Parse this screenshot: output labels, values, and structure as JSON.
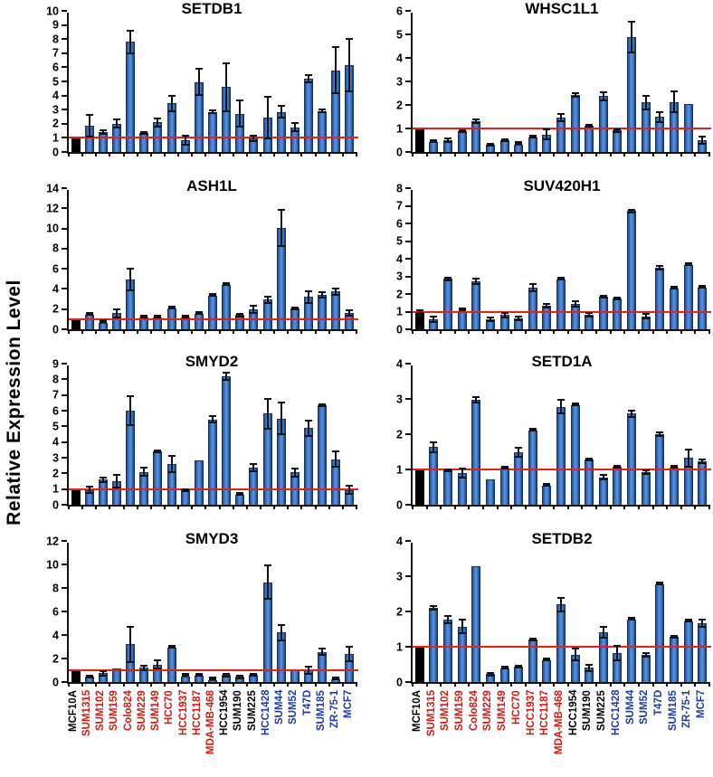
{
  "figure": {
    "ylabel": "Relative Expression Level",
    "categories": [
      "MCF10A",
      "SUM1315",
      "SUM102",
      "SUM159",
      "Colo824",
      "SUM229",
      "SUM149",
      "HCC70",
      "HCC1937",
      "HCC1187",
      "MDA-MB-468",
      "HCC1954",
      "SUM190",
      "SUM225",
      "HCC1428",
      "SUM44",
      "SUM52",
      "T47D",
      "SUM185",
      "ZR-75-1",
      "MCF7"
    ],
    "category_colors": [
      "#000000",
      "#d11a10",
      "#d11a10",
      "#d11a10",
      "#d11a10",
      "#d11a10",
      "#d11a10",
      "#d11a10",
      "#d11a10",
      "#d11a10",
      "#d11a10",
      "#000000",
      "#000000",
      "#000000",
      "#1c3ba8",
      "#1c3ba8",
      "#1c3ba8",
      "#1c3ba8",
      "#1c3ba8",
      "#1c3ba8",
      "#1c3ba8"
    ],
    "bar_color": "#3a70c0",
    "control_bar_color": "#000000",
    "error_bar_color": "#111111",
    "reference_line_color": "#ee1c14",
    "grid": "off",
    "legend": "none"
  },
  "chart_data": [
    {
      "type": "bar",
      "title": "SETDB1",
      "ylim": [
        0,
        10
      ],
      "ytick_step": 1,
      "ref_line": 1,
      "control_index": 0,
      "values": [
        1.0,
        1.85,
        1.4,
        2.0,
        7.8,
        1.35,
        2.1,
        3.45,
        0.85,
        4.95,
        2.85,
        4.6,
        2.7,
        0.95,
        2.45,
        2.85,
        1.75,
        5.2,
        2.9,
        5.8,
        6.15
      ],
      "errors": [
        0,
        0.85,
        0.2,
        0.35,
        0.85,
        0.1,
        0.35,
        0.6,
        0.4,
        1.0,
        0.15,
        1.75,
        1.0,
        0.25,
        1.55,
        0.5,
        0.35,
        0.3,
        0.15,
        1.7,
        1.9
      ]
    },
    {
      "type": "bar",
      "title": "WHSC1L1",
      "ylim": [
        0,
        6
      ],
      "ytick_step": 1,
      "ref_line": 1,
      "control_index": 0,
      "values": [
        1.0,
        0.42,
        0.5,
        0.9,
        1.3,
        0.3,
        0.5,
        0.32,
        0.63,
        0.75,
        1.47,
        2.42,
        1.1,
        2.37,
        0.92,
        4.88,
        2.1,
        1.5,
        2.12,
        2.05,
        0.5
      ],
      "errors": [
        0,
        0.05,
        0.1,
        0.08,
        0.12,
        0.05,
        0.07,
        0.03,
        0.06,
        0.25,
        0.2,
        0.13,
        0.05,
        0.2,
        0.1,
        0.7,
        0.32,
        0.25,
        0.48,
        0,
        0.2
      ]
    },
    {
      "type": "bar",
      "title": "ASH1L",
      "ylim": [
        0,
        14
      ],
      "ytick_step": 2,
      "ref_line": 1,
      "control_index": 0,
      "values": [
        1.0,
        1.45,
        0.65,
        1.6,
        4.95,
        1.2,
        1.2,
        2.05,
        1.2,
        1.5,
        3.35,
        4.4,
        1.4,
        1.95,
        2.95,
        10.05,
        2.05,
        3.2,
        3.4,
        3.75,
        1.65
      ],
      "errors": [
        0,
        0.1,
        0.05,
        0.5,
        1.15,
        0.1,
        0.15,
        0.1,
        0.15,
        0.1,
        0.1,
        0.1,
        0.2,
        0.45,
        0.4,
        1.9,
        0.15,
        0.7,
        0.35,
        0.4,
        0.35
      ]
    },
    {
      "type": "bar",
      "title": "SUV420H1",
      "ylim": [
        0,
        8
      ],
      "ytick_step": 1,
      "ref_line": 1,
      "control_index": 0,
      "values": [
        1.0,
        0.55,
        2.85,
        1.05,
        2.7,
        0.55,
        0.8,
        0.6,
        2.35,
        1.35,
        2.82,
        1.45,
        0.8,
        1.85,
        1.72,
        6.7,
        0.72,
        3.5,
        2.3,
        3.65,
        2.35
      ],
      "errors": [
        0.15,
        0.2,
        0.15,
        0.02,
        0.2,
        0.15,
        0.2,
        0.15,
        0.25,
        0.15,
        0.03,
        0.2,
        0.15,
        0.1,
        0.08,
        0.12,
        0.18,
        0.15,
        0.03,
        0.08,
        0.03
      ]
    },
    {
      "type": "bar",
      "title": "SMYD2",
      "ylim": [
        0,
        9
      ],
      "ytick_step": 1,
      "ref_line": 1,
      "control_index": 0,
      "values": [
        1.0,
        0.95,
        1.6,
        1.5,
        6.0,
        2.1,
        3.4,
        2.6,
        0.9,
        2.8,
        5.45,
        8.2,
        0.65,
        2.35,
        5.8,
        5.5,
        2.05,
        4.9,
        6.35,
        2.9,
        0.95
      ],
      "errors": [
        0,
        0.25,
        0.2,
        0.45,
        1.0,
        0.3,
        0.1,
        0.6,
        0.1,
        0,
        0.25,
        0.3,
        0.05,
        0.3,
        1.0,
        1.05,
        0.3,
        0.55,
        0.1,
        0.55,
        0.3
      ]
    },
    {
      "type": "bar",
      "title": "SETD1A",
      "ylim": [
        0,
        4
      ],
      "ytick_step": 1,
      "ref_line": 1,
      "control_index": 0,
      "values": [
        1.0,
        1.63,
        0.97,
        0.9,
        2.97,
        0.73,
        1.05,
        1.48,
        2.1,
        0.54,
        2.78,
        2.82,
        1.28,
        0.78,
        1.07,
        2.58,
        0.92,
        2.0,
        1.05,
        1.33,
        1.23
      ],
      "errors": [
        0,
        0.17,
        0.05,
        0.15,
        0.1,
        0,
        0.05,
        0.15,
        0.02,
        0.03,
        0.22,
        0.02,
        0.05,
        0.1,
        0.04,
        0.12,
        0.07,
        0.08,
        0.02,
        0.27,
        0.08
      ]
    },
    {
      "type": "bar",
      "title": "SMYD3",
      "ylim": [
        0,
        12
      ],
      "ytick_step": 2,
      "ref_line": 1,
      "control_index": 0,
      "values": [
        1.0,
        0.45,
        0.75,
        1.15,
        3.2,
        1.2,
        1.5,
        2.95,
        0.5,
        0.55,
        0.15,
        0.6,
        0.45,
        0.6,
        8.5,
        4.2,
        1.0,
        1.0,
        2.55,
        0.2,
        2.4
      ],
      "errors": [
        0,
        0.15,
        0.25,
        0,
        1.55,
        0.3,
        0.4,
        0.1,
        0.05,
        0.05,
        0.03,
        0.2,
        0.2,
        0.1,
        1.5,
        0.75,
        0,
        0.35,
        0.35,
        0.05,
        0.7
      ]
    },
    {
      "type": "bar",
      "title": "SETDB2",
      "ylim": [
        0,
        4
      ],
      "ytick_step": 1,
      "ref_line": 1,
      "control_index": 0,
      "values": [
        1.0,
        2.1,
        1.77,
        1.57,
        3.28,
        0.22,
        0.38,
        0.43,
        1.2,
        0.62,
        2.2,
        0.78,
        0.4,
        1.42,
        0.82,
        1.77,
        0.77,
        2.78,
        1.28,
        1.72,
        1.67
      ],
      "errors": [
        0,
        0.08,
        0.12,
        0.22,
        0,
        0.07,
        0.02,
        0.05,
        0.05,
        0.02,
        0.22,
        0.2,
        0.12,
        0.18,
        0.22,
        0.02,
        0.08,
        0.03,
        0.04,
        0.02,
        0.13
      ]
    }
  ]
}
